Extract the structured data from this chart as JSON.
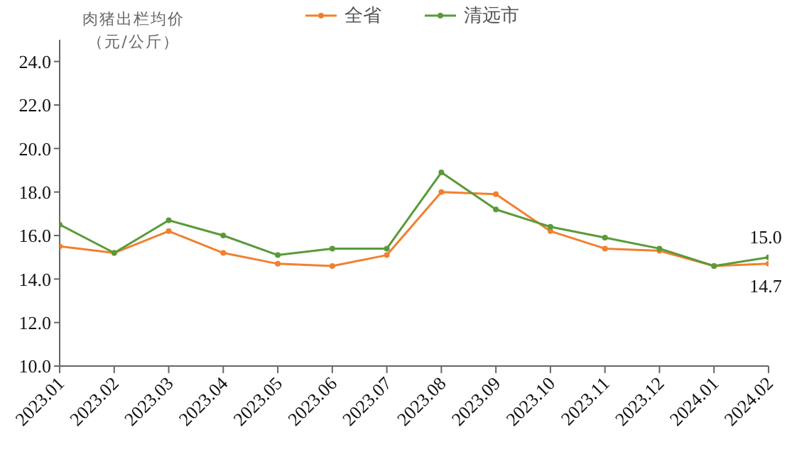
{
  "chart_data": {
    "type": "line",
    "ylabel": "肉猪出栏均价（元/公斤）",
    "categories": [
      "2023.01",
      "2023.02",
      "2023.03",
      "2023.04",
      "2023.05",
      "2023.06",
      "2023.07",
      "2023.08",
      "2023.09",
      "2023.10",
      "2023.11",
      "2023.12",
      "2024.01",
      "2024.02"
    ],
    "series": [
      {
        "name": "全省",
        "color": "#f08030",
        "values": [
          15.5,
          15.2,
          16.2,
          15.2,
          14.7,
          14.6,
          15.1,
          18.0,
          17.9,
          16.2,
          15.4,
          15.3,
          14.6,
          14.7
        ],
        "value_labels": [
          null,
          null,
          null,
          null,
          null,
          null,
          null,
          null,
          null,
          null,
          null,
          null,
          null,
          "14.7"
        ]
      },
      {
        "name": "清远市",
        "color": "#5a9a3a",
        "values": [
          16.5,
          15.2,
          16.7,
          16.0,
          15.1,
          15.4,
          15.4,
          18.9,
          17.2,
          16.4,
          15.9,
          15.4,
          14.6,
          15.0
        ],
        "value_labels": [
          null,
          null,
          null,
          null,
          null,
          null,
          null,
          null,
          null,
          null,
          null,
          null,
          null,
          "15.0"
        ]
      }
    ],
    "ylim": [
      10,
      25
    ],
    "yticks": [
      {
        "value": 10,
        "label": "10.0"
      },
      {
        "value": 12,
        "label": "12.0"
      },
      {
        "value": 14,
        "label": "14.0"
      },
      {
        "value": 16,
        "label": "16.0"
      },
      {
        "value": 18,
        "label": "18.0"
      },
      {
        "value": 20,
        "label": "20.0"
      },
      {
        "value": 22,
        "label": "22.0"
      },
      {
        "value": 24,
        "label": "24.0"
      }
    ],
    "grid": false,
    "legend": "top",
    "marker": "circle",
    "line_style": "solid"
  }
}
